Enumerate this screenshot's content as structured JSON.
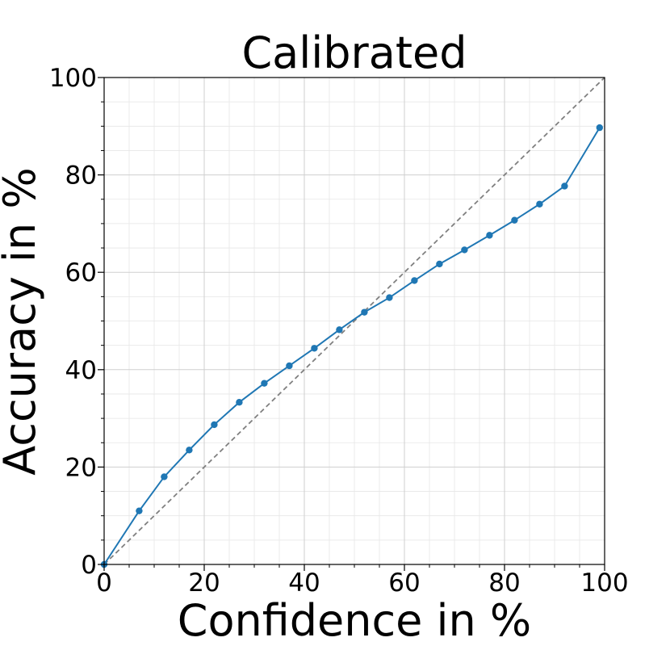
{
  "chart_data": {
    "type": "line",
    "title": "Calibrated",
    "xlabel": "Confidence in %",
    "ylabel": "Accuracy in %",
    "xlim": [
      0,
      100
    ],
    "ylim": [
      0,
      100
    ],
    "xticks": [
      0,
      20,
      40,
      60,
      80,
      100
    ],
    "yticks": [
      0,
      20,
      40,
      60,
      80,
      100
    ],
    "grid": true,
    "series": [
      {
        "color": "#1f77b4",
        "x": [
          0,
          7,
          12,
          17,
          22,
          27,
          32,
          37,
          42,
          47,
          52,
          57,
          62,
          67,
          72,
          77,
          82,
          87,
          92,
          99
        ],
        "y": [
          0,
          11,
          18,
          23.5,
          28.7,
          33.3,
          37.2,
          40.8,
          44.4,
          48.2,
          51.8,
          54.8,
          58.3,
          61.7,
          64.6,
          67.6,
          70.7,
          74,
          77.7,
          89.7
        ]
      }
    ],
    "reference_line": {
      "x": [
        0,
        100
      ],
      "y": [
        0,
        100
      ],
      "color": "#808080",
      "style": "dashed"
    }
  }
}
